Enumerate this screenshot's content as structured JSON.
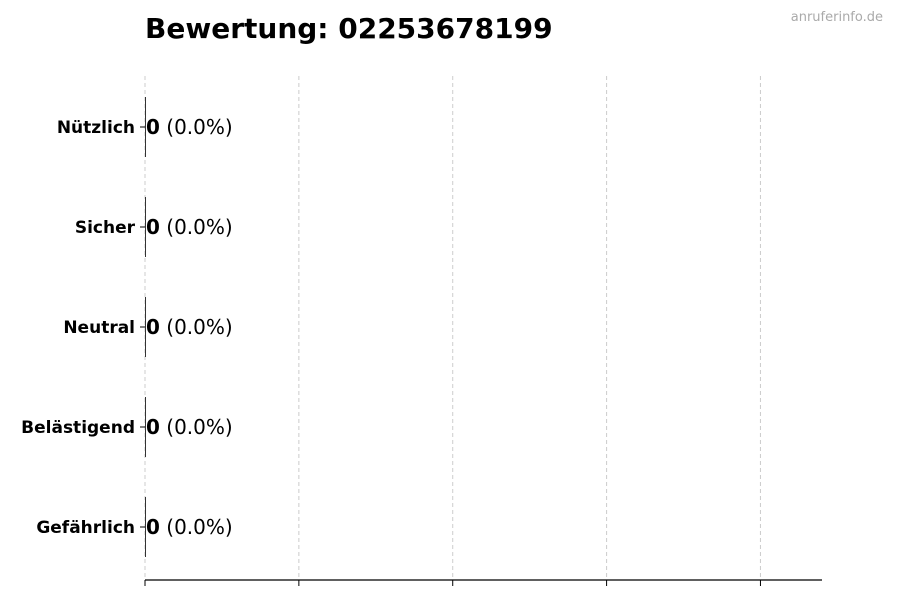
{
  "watermark": "anruferinfo.de",
  "chart_data": {
    "type": "bar",
    "orientation": "horizontal",
    "title": "Bewertung: 02253678199",
    "categories": [
      "Nützlich",
      "Sicher",
      "Neutral",
      "Belästigend",
      "Gefährlich"
    ],
    "values": [
      0,
      0,
      0,
      0,
      0
    ],
    "labels": [
      {
        "count": "0",
        "pct": "(0.0%)"
      },
      {
        "count": "0",
        "pct": "(0.0%)"
      },
      {
        "count": "0",
        "pct": "(0.0%)"
      },
      {
        "count": "0",
        "pct": "(0.0%)"
      },
      {
        "count": "0",
        "pct": "(0.0%)"
      }
    ],
    "xlabel": "",
    "ylabel": "",
    "xlim": [
      0,
      4.4
    ],
    "xticks": [
      0,
      1,
      2,
      3,
      4
    ],
    "xtick_labels_visible": false,
    "grid": "x, dashed",
    "grid_color": "#cccccc",
    "bar_color": "#333333"
  }
}
